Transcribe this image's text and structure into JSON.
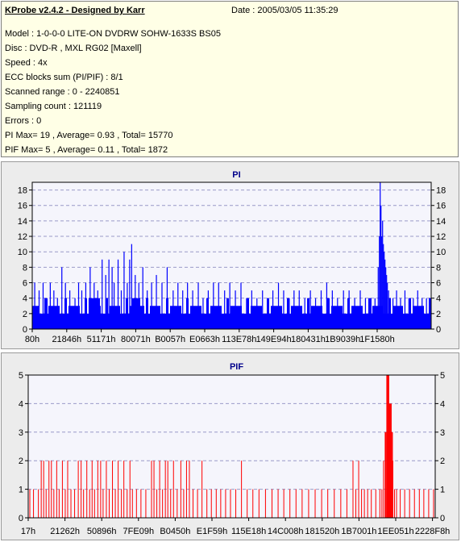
{
  "header": {
    "app_title": "KProbe v2.4.2 - Designed by Karr",
    "date": "Date : 2005/03/05 11:35:29",
    "lines": [
      "Model : 1-0-0-0 LITE-ON DVDRW SOHW-1633S BS05",
      "Disc : DVD-R , MXL RG02 [Maxell]",
      "Speed : 4x",
      "ECC blocks sum (PI/PIF) : 8/1",
      "Scanned range : 0 - 2240851",
      "Sampling count : 121119",
      "Errors : 0",
      "PI Max= 19 , Average= 0.93 , Total= 15770",
      "PIF Max= 5 , Average= 0.11 , Total= 1872"
    ]
  },
  "colors": {
    "background": "#ffffff",
    "info_panel": "#ffffe6",
    "panel": "#ececec",
    "plot_area": "#f5f5fc",
    "grid": "#9a9ac8",
    "title": "#00008b",
    "pi_bars": "#0000ff",
    "pif_bars": "#ff0000"
  },
  "chart_data": [
    {
      "id": "pi",
      "type": "bar",
      "title": "PI",
      "xlabel": "",
      "ylabel": "",
      "ylim": [
        0,
        19
      ],
      "y_ticks": [
        0,
        2,
        4,
        6,
        8,
        10,
        12,
        14,
        16,
        18
      ],
      "x_tick_labels": [
        "80h",
        "21846h",
        "51171h",
        "80071h",
        "B0057h",
        "E0663h",
        "113E78h",
        "149E94h",
        "180431h",
        "1B9039h",
        "1F1580h"
      ],
      "grid": true,
      "x_range": [
        0,
        100
      ],
      "bar_color": "#0000ff",
      "data": {
        "baseline": [
          [
            0,
            3
          ],
          [
            7,
            3
          ],
          [
            12,
            3
          ],
          [
            14,
            4
          ],
          [
            17,
            3
          ],
          [
            22,
            3
          ],
          [
            25,
            4
          ],
          [
            28,
            3
          ],
          [
            35,
            3
          ],
          [
            40,
            3
          ],
          [
            50,
            3
          ],
          [
            60,
            3
          ],
          [
            70,
            3
          ],
          [
            80,
            3
          ],
          [
            86,
            3
          ],
          [
            87.5,
            3
          ],
          [
            90,
            3
          ],
          [
            95,
            3
          ],
          [
            100,
            3
          ]
        ],
        "spikes": [
          [
            0.5,
            6
          ],
          [
            1.6,
            5
          ],
          [
            2.6,
            6
          ],
          [
            3.6,
            4
          ],
          [
            4.4,
            6
          ],
          [
            5.3,
            5
          ],
          [
            6.2,
            4
          ],
          [
            7.3,
            8
          ],
          [
            8.2,
            6
          ],
          [
            9.3,
            5
          ],
          [
            10.6,
            4
          ],
          [
            11.5,
            6
          ],
          [
            12.3,
            5
          ],
          [
            13.3,
            6
          ],
          [
            14.4,
            8
          ],
          [
            15.4,
            6
          ],
          [
            16.3,
            5
          ],
          [
            17.4,
            9
          ],
          [
            18.3,
            7
          ],
          [
            19.1,
            9
          ],
          [
            19.9,
            8
          ],
          [
            20.4,
            6
          ],
          [
            21.4,
            9
          ],
          [
            22.2,
            5
          ],
          [
            22.9,
            10
          ],
          [
            23.7,
            6
          ],
          [
            24.3,
            9
          ],
          [
            24.8,
            11
          ],
          [
            25.7,
            7
          ],
          [
            26.6,
            6
          ],
          [
            27.6,
            8
          ],
          [
            28.7,
            5
          ],
          [
            29.8,
            6
          ],
          [
            31,
            7
          ],
          [
            32.4,
            6
          ],
          [
            33.7,
            8
          ],
          [
            35.2,
            5
          ],
          [
            36.4,
            6
          ],
          [
            37.6,
            5
          ],
          [
            38.8,
            6
          ],
          [
            40.1,
            5
          ],
          [
            41.5,
            6
          ],
          [
            42.7,
            4
          ],
          [
            44,
            5
          ],
          [
            45.3,
            6
          ],
          [
            46.6,
            6
          ],
          [
            48.1,
            5
          ],
          [
            49.4,
            6
          ],
          [
            50.8,
            5
          ],
          [
            52.2,
            6
          ],
          [
            53.6,
            4
          ],
          [
            54.9,
            5
          ],
          [
            56.2,
            4
          ],
          [
            57.6,
            5
          ],
          [
            58.9,
            4
          ],
          [
            60.2,
            5
          ],
          [
            61.6,
            6
          ],
          [
            62.9,
            5
          ],
          [
            64.3,
            4
          ],
          [
            65.5,
            5
          ],
          [
            66.8,
            5
          ],
          [
            68.2,
            4
          ],
          [
            69.6,
            5
          ],
          [
            70.9,
            4
          ],
          [
            72.3,
            5
          ],
          [
            73.7,
            6
          ],
          [
            75.1,
            5
          ],
          [
            76.4,
            4
          ],
          [
            77.9,
            5
          ],
          [
            79.3,
            5
          ],
          [
            80.7,
            4
          ],
          [
            82.1,
            5
          ],
          [
            83.4,
            4
          ],
          [
            84.8,
            4
          ],
          [
            85.8,
            4
          ],
          [
            86.6,
            8
          ],
          [
            86.9,
            12
          ],
          [
            87.1,
            19
          ],
          [
            87.3,
            16
          ],
          [
            87.5,
            12
          ],
          [
            87.7,
            14
          ],
          [
            87.9,
            11
          ],
          [
            88.1,
            10
          ],
          [
            88.3,
            9
          ],
          [
            88.5,
            8
          ],
          [
            88.7,
            7
          ],
          [
            88.9,
            6
          ],
          [
            89.2,
            5
          ],
          [
            89.6,
            4
          ],
          [
            90.3,
            4
          ],
          [
            91.2,
            5
          ],
          [
            92.2,
            4
          ],
          [
            93.3,
            5
          ],
          [
            94.3,
            4
          ],
          [
            95.4,
            4
          ],
          [
            96.5,
            5
          ],
          [
            97.6,
            4
          ],
          [
            98.7,
            4
          ],
          [
            99.6,
            4
          ]
        ]
      }
    },
    {
      "id": "pif",
      "type": "bar",
      "title": "PIF",
      "xlabel": "",
      "ylabel": "",
      "ylim": [
        0,
        5
      ],
      "y_ticks": [
        0,
        1,
        2,
        3,
        4,
        5
      ],
      "x_tick_labels": [
        "17h",
        "21262h",
        "50896h",
        "7FE09h",
        "B0450h",
        "E1F59h",
        "115E18h",
        "14C008h",
        "181520h",
        "1B7001h",
        "1EE051h",
        "2228F8h"
      ],
      "grid": true,
      "x_range": [
        0,
        100
      ],
      "bar_color": "#ff0000",
      "data": {
        "bars": [
          [
            0.3,
            1
          ],
          [
            1.2,
            1
          ],
          [
            2.4,
            1
          ],
          [
            3.1,
            2
          ],
          [
            3.7,
            2
          ],
          [
            4.3,
            1
          ],
          [
            5,
            2
          ],
          [
            5.6,
            2
          ],
          [
            6.2,
            1
          ],
          [
            6.9,
            2
          ],
          [
            7.5,
            1
          ],
          [
            8.3,
            2
          ],
          [
            9,
            1
          ],
          [
            9.6,
            2
          ],
          [
            10.4,
            1
          ],
          [
            11.3,
            1
          ],
          [
            12.2,
            2
          ],
          [
            12.9,
            2
          ],
          [
            13.5,
            1
          ],
          [
            14.3,
            2
          ],
          [
            15,
            1
          ],
          [
            15.6,
            2
          ],
          [
            16.2,
            1
          ],
          [
            17,
            2
          ],
          [
            17.7,
            2
          ],
          [
            18.3,
            1
          ],
          [
            19.1,
            2
          ],
          [
            19.8,
            1
          ],
          [
            20.6,
            2
          ],
          [
            21.3,
            1
          ],
          [
            22,
            2
          ],
          [
            22.8,
            1
          ],
          [
            23.4,
            2
          ],
          [
            24.2,
            1
          ],
          [
            24.9,
            2
          ],
          [
            25.5,
            1
          ],
          [
            26.5,
            1
          ],
          [
            27.6,
            1
          ],
          [
            28.8,
            1
          ],
          [
            30.2,
            2
          ],
          [
            30.8,
            2
          ],
          [
            31.5,
            1
          ],
          [
            32.2,
            2
          ],
          [
            32.9,
            1
          ],
          [
            33.6,
            2
          ],
          [
            34.2,
            2
          ],
          [
            34.9,
            1
          ],
          [
            35.6,
            2
          ],
          [
            36.5,
            1
          ],
          [
            37.4,
            2
          ],
          [
            38.1,
            1
          ],
          [
            38.8,
            2
          ],
          [
            39.5,
            2
          ],
          [
            40.4,
            1
          ],
          [
            41.5,
            1
          ],
          [
            42.6,
            2
          ],
          [
            43.8,
            1
          ],
          [
            44.9,
            1
          ],
          [
            46.1,
            1
          ],
          [
            47.2,
            1
          ],
          [
            48.4,
            1
          ],
          [
            49.6,
            1
          ],
          [
            50.9,
            1
          ],
          [
            52.3,
            2
          ],
          [
            53.7,
            1
          ],
          [
            55.1,
            1
          ],
          [
            56.6,
            1
          ],
          [
            58.2,
            1
          ],
          [
            59.8,
            1
          ],
          [
            61.3,
            1
          ],
          [
            62.7,
            1
          ],
          [
            64.2,
            1
          ],
          [
            65.7,
            1
          ],
          [
            67.2,
            1
          ],
          [
            68.8,
            1
          ],
          [
            70.4,
            1
          ],
          [
            72,
            1
          ],
          [
            73.5,
            1
          ],
          [
            75.1,
            1
          ],
          [
            76.7,
            1
          ],
          [
            78.2,
            1
          ],
          [
            79.7,
            2
          ],
          [
            80.4,
            1
          ],
          [
            81.1,
            2
          ],
          [
            81.8,
            1
          ],
          [
            82.5,
            1
          ],
          [
            83.3,
            1
          ],
          [
            84.2,
            1
          ],
          [
            85.3,
            1
          ],
          [
            86.3,
            1
          ],
          [
            86.8,
            1
          ],
          [
            87.2,
            2
          ],
          [
            87.6,
            3
          ],
          [
            88,
            5
          ],
          [
            88.3,
            5
          ],
          [
            88.6,
            4
          ],
          [
            88.9,
            4
          ],
          [
            89.2,
            3
          ],
          [
            89.5,
            2
          ],
          [
            89.9,
            1
          ],
          [
            90.4,
            1
          ],
          [
            91.3,
            1
          ],
          [
            92.4,
            1
          ],
          [
            93.6,
            1
          ],
          [
            94.8,
            1
          ],
          [
            96,
            1
          ],
          [
            97.1,
            1
          ],
          [
            98.3,
            1
          ],
          [
            99.5,
            1
          ]
        ]
      }
    }
  ]
}
